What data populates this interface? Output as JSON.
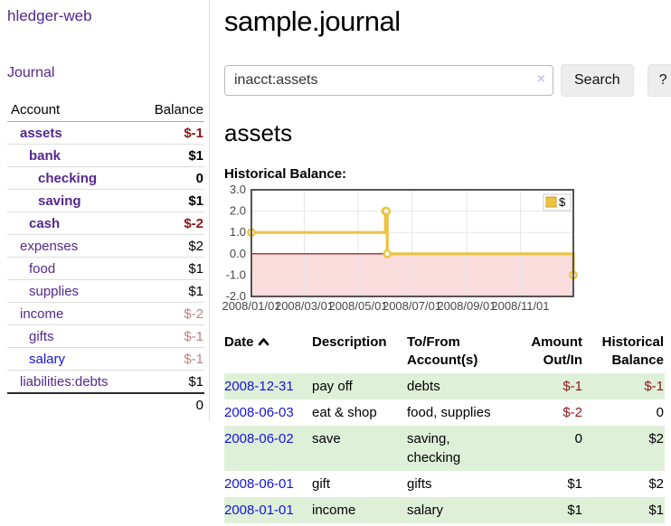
{
  "sidebar": {
    "brand": "hledger-web",
    "journal_link": "Journal",
    "accounts_table": {
      "headers": {
        "account": "Account",
        "balance": "Balance"
      },
      "rows": [
        {
          "name": "assets",
          "indent": 1,
          "bold": true,
          "balance": "$-1",
          "balance_style": "neg-strong"
        },
        {
          "name": "bank",
          "indent": 2,
          "bold": true,
          "balance": "$1",
          "balance_style": "pos-strong"
        },
        {
          "name": "checking",
          "indent": 3,
          "bold": true,
          "balance": "0",
          "balance_style": "pos-strong"
        },
        {
          "name": "saving",
          "indent": 3,
          "bold": true,
          "balance": "$1",
          "balance_style": "pos-strong"
        },
        {
          "name": "cash",
          "indent": 2,
          "bold": true,
          "balance": "$-2",
          "balance_style": "neg-strong"
        },
        {
          "name": "expenses",
          "indent": 1,
          "bold": false,
          "balance": "$2",
          "balance_style": "pos"
        },
        {
          "name": "food",
          "indent": 2,
          "bold": false,
          "balance": "$1",
          "balance_style": "pos"
        },
        {
          "name": "supplies",
          "indent": 2,
          "bold": false,
          "balance": "$1",
          "balance_style": "pos"
        },
        {
          "name": "income",
          "indent": 1,
          "bold": false,
          "balance": "$-2",
          "balance_style": "neg-faded"
        },
        {
          "name": "gifts",
          "indent": 2,
          "bold": false,
          "balance": "$-1",
          "balance_style": "neg-faded"
        },
        {
          "name": "salary",
          "indent": 2,
          "bold": false,
          "link_color": "#1414dd",
          "balance": "$-1",
          "balance_style": "neg-faded"
        },
        {
          "name": "liabilities:debts",
          "indent": 1,
          "bold": false,
          "balance": "$1",
          "balance_style": "pos"
        }
      ],
      "total": "0"
    }
  },
  "header": {
    "title": "sample.journal"
  },
  "search": {
    "value": "inacct:assets",
    "clear_icon": "×",
    "button_label": "Search",
    "help_label": "?"
  },
  "account_page": {
    "heading": "assets",
    "chart_caption": "Historical Balance:"
  },
  "chart_data": {
    "type": "line",
    "step": true,
    "title": "Historical Balance",
    "series": [
      {
        "name": "$",
        "color": "#edc240",
        "marker_fill": "#ffffff",
        "points": [
          [
            "2008-01-01",
            1
          ],
          [
            "2008-06-01",
            2
          ],
          [
            "2008-06-02",
            2
          ],
          [
            "2008-06-03",
            0
          ],
          [
            "2008-12-31",
            -1
          ]
        ]
      }
    ],
    "x_range": [
      "2008-01-01",
      "2008-12-31"
    ],
    "ylim": [
      -2,
      3
    ],
    "y_ticks": [
      {
        "v": 3,
        "label": "3.0"
      },
      {
        "v": 2,
        "label": "2.0"
      },
      {
        "v": 1,
        "label": "1.0"
      },
      {
        "v": 0,
        "label": "0.0"
      },
      {
        "v": -1,
        "label": "-1.0"
      },
      {
        "v": -2,
        "label": "-2.0"
      }
    ],
    "x_ticks": [
      {
        "date": "2008-01-01",
        "label": "2008/01/01"
      },
      {
        "date": "2008-03-01",
        "label": "2008/03/01"
      },
      {
        "date": "2008-05-01",
        "label": "2008/05/01"
      },
      {
        "date": "2008-07-01",
        "label": "2008/07/01"
      },
      {
        "date": "2008-09-01",
        "label": "2008/09/01"
      },
      {
        "date": "2008-11-01",
        "label": "2008/11/01"
      }
    ],
    "legend": {
      "label": "$",
      "position": "top-right"
    },
    "grid": true,
    "colors": {
      "grid_line": "#e6e6e6",
      "plot_border": "#545454",
      "negative_region": "#fbdcdc",
      "zero_line": "#8b0000",
      "tick_text": "#474747"
    }
  },
  "register_table": {
    "headers": {
      "date": "Date",
      "description": "Description",
      "accounts": "To/From Account(s)",
      "amount": "Amount Out/In",
      "balance": "Historical Balance"
    },
    "sort": {
      "column": "date",
      "direction": "asc"
    },
    "rows": [
      {
        "date": "2008-12-31",
        "description": "pay off",
        "accounts": "debts",
        "amount": "$-1",
        "amount_neg": true,
        "balance": "$-1",
        "balance_neg": true,
        "shade": true
      },
      {
        "date": "2008-06-03",
        "description": "eat & shop",
        "accounts": "food, supplies",
        "amount": "$-2",
        "amount_neg": true,
        "balance": "0",
        "balance_neg": false,
        "shade": false
      },
      {
        "date": "2008-06-02",
        "description": "save",
        "accounts": "saving, checking",
        "amount": "0",
        "amount_neg": false,
        "balance": "$2",
        "balance_neg": false,
        "shade": true
      },
      {
        "date": "2008-06-01",
        "description": "gift",
        "accounts": "gifts",
        "amount": "$1",
        "amount_neg": false,
        "balance": "$2",
        "balance_neg": false,
        "shade": false
      },
      {
        "date": "2008-01-01",
        "description": "income",
        "accounts": "salary",
        "amount": "$1",
        "amount_neg": false,
        "balance": "$1",
        "balance_neg": false,
        "shade": true
      }
    ]
  }
}
